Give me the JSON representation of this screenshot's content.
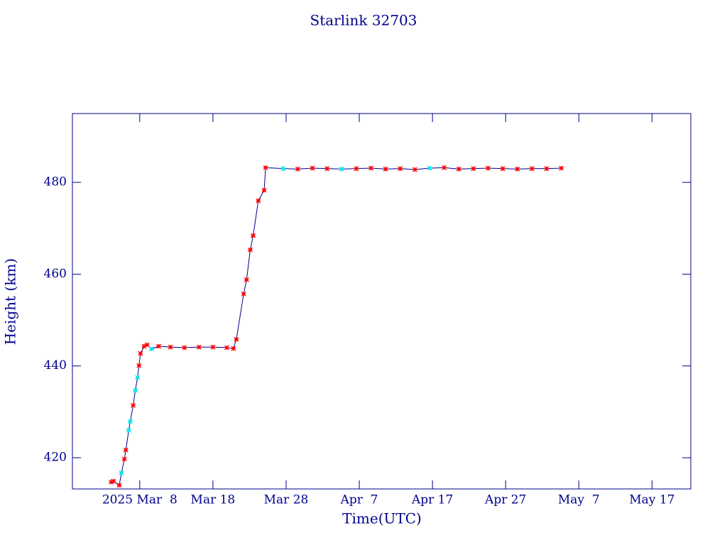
{
  "chart_data": {
    "type": "line",
    "title": "Starlink 32703",
    "x_label": "Time(UTC)",
    "y_label": "Height (km)",
    "xlim": [
      57.8,
      142.3
    ],
    "xticks": [
      {
        "value": 67,
        "label": "2025 Mar  8"
      },
      {
        "value": 77,
        "label": "Mar 18"
      },
      {
        "value": 87,
        "label": "Mar 28"
      },
      {
        "value": 97,
        "label": "Apr  7"
      },
      {
        "value": 107,
        "label": "Apr 17"
      },
      {
        "value": 117,
        "label": "Apr 27"
      },
      {
        "value": 127,
        "label": "May  7"
      },
      {
        "value": 137,
        "label": "May 17"
      }
    ],
    "ylim": [
      413.2,
      495.0
    ],
    "yticks": [
      420,
      440,
      460,
      480
    ],
    "line_color": "#00008b",
    "axis_color": "#00008b",
    "x": [
      63.1,
      63.4,
      64.2,
      64.5,
      64.9,
      65.1,
      65.5,
      65.7,
      66.1,
      66.4,
      66.7,
      66.9,
      67.1,
      67.6,
      68.0,
      68.6,
      69.6,
      71.2,
      73.1,
      75.1,
      77.0,
      78.9,
      79.8,
      80.2,
      81.2,
      81.6,
      82.1,
      82.5,
      83.2,
      84.0,
      84.2,
      86.6,
      88.6,
      90.6,
      92.6,
      94.6,
      96.6,
      98.6,
      100.6,
      102.6,
      104.6,
      106.6,
      108.6,
      110.6,
      112.6,
      114.6,
      116.6,
      118.6,
      120.6,
      122.6,
      124.6
    ],
    "values": [
      414.7,
      414.9,
      414.0,
      416.7,
      419.7,
      421.7,
      426.0,
      427.9,
      431.4,
      434.7,
      437.5,
      440.1,
      442.7,
      444.3,
      444.6,
      443.7,
      444.3,
      444.1,
      444.0,
      444.1,
      444.1,
      444.0,
      443.8,
      445.8,
      455.7,
      458.8,
      465.3,
      468.4,
      476.0,
      478.3,
      483.2,
      483.0,
      482.9,
      483.1,
      483.0,
      482.9,
      483.0,
      483.1,
      482.9,
      483.0,
      482.8,
      483.1,
      483.2,
      482.9,
      483.0,
      483.1,
      483.0,
      482.9,
      483.0,
      483.0,
      483.1
    ],
    "point_colors": [
      "#ff0000",
      "#ff0000",
      "#ff0000",
      "#00e5ee",
      "#ff0000",
      "#ff0000",
      "#00e5ee",
      "#00e5ee",
      "#ff0000",
      "#00e5ee",
      "#00e5ee",
      "#ff0000",
      "#ff0000",
      "#ff0000",
      "#ff0000",
      "#00e5ee",
      "#ff0000",
      "#ff0000",
      "#ff0000",
      "#ff0000",
      "#ff0000",
      "#ff0000",
      "#ff0000",
      "#ff0000",
      "#ff0000",
      "#ff0000",
      "#ff0000",
      "#ff0000",
      "#ff0000",
      "#ff0000",
      "#ff0000",
      "#00e5ee",
      "#ff0000",
      "#ff0000",
      "#ff0000",
      "#00e5ee",
      "#ff0000",
      "#ff0000",
      "#ff0000",
      "#ff0000",
      "#ff0000",
      "#00e5ee",
      "#ff0000",
      "#ff0000",
      "#ff0000",
      "#ff0000",
      "#ff0000",
      "#ff0000",
      "#ff0000",
      "#ff0000",
      "#ff0000"
    ]
  }
}
